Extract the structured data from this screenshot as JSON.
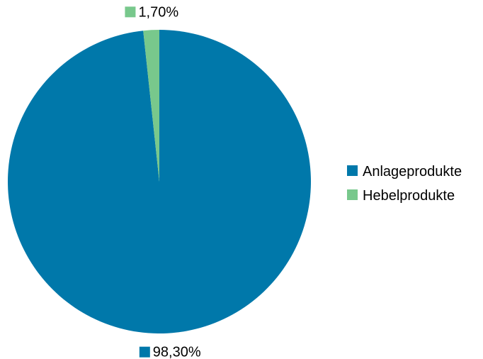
{
  "chart_data": {
    "type": "pie",
    "categories": [
      "Anlageprodukte",
      "Hebelprodukte"
    ],
    "values": [
      98.3,
      1.7
    ],
    "data_labels": [
      "98,30%",
      "1,70%"
    ],
    "colors": [
      "#0078AA",
      "#78C88C"
    ],
    "start_angle_deg": 0,
    "direction": "clockwise",
    "legend": {
      "position": "right",
      "entries": [
        "Anlageprodukte",
        "Hebelprodukte"
      ]
    },
    "title": ""
  }
}
